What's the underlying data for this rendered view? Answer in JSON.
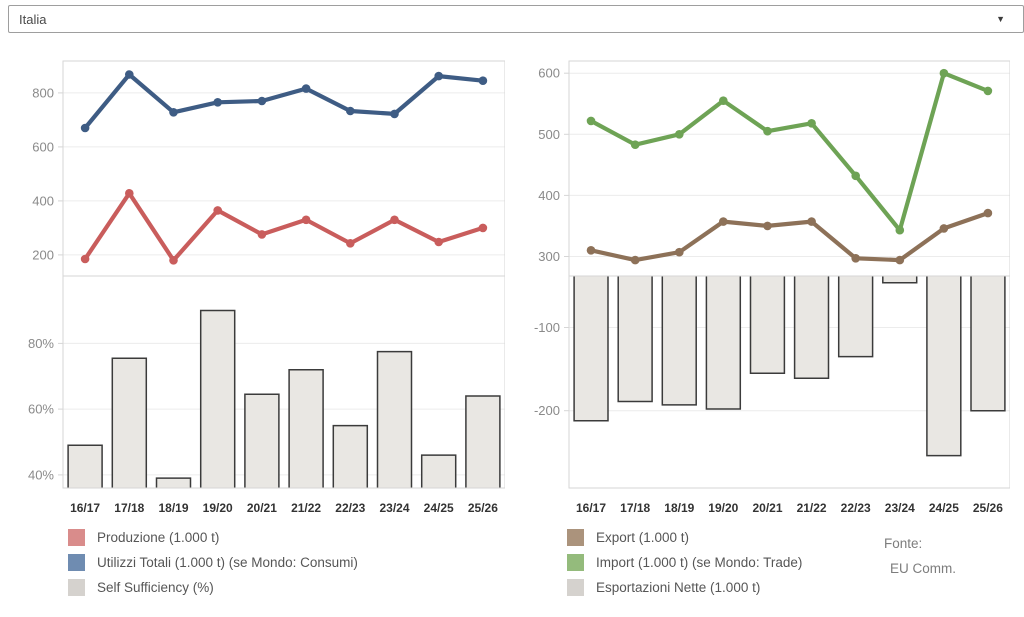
{
  "filter_dropdown": {
    "value": "Italia"
  },
  "source_note": {
    "label": "Fonte:",
    "value": "EU Comm."
  },
  "colors": {
    "blue_line": "#3e5c84",
    "red_line": "#c95d5c",
    "green_line": "#6ea355",
    "brown_line": "#8d7158",
    "bar_fill": "#e9e7e3",
    "bar_stroke": "#3b3b3b",
    "gridline": "#ececec",
    "pane_border": "#d6d6d6",
    "axis_text": "#8a8a8a",
    "x_label_text": "#333333"
  },
  "chart_data": [
    {
      "id": "left-top",
      "type": "line",
      "categories": [
        "16/17",
        "17/18",
        "18/19",
        "19/20",
        "20/21",
        "21/22",
        "22/23",
        "23/24",
        "24/25",
        "25/26"
      ],
      "ylim": [
        122,
        918
      ],
      "yticks": [
        200,
        400,
        600,
        800
      ],
      "tick_suffix": "",
      "grid": true,
      "series": [
        {
          "name": "Utilizzi Totali (1.000 t) (se Mondo: Consumi)",
          "color": "#3e5c84",
          "values": [
            670,
            868,
            728,
            765,
            770,
            816,
            733,
            722,
            862,
            845
          ]
        },
        {
          "name": "Produzione (1.000 t)",
          "color": "#c95d5c",
          "values": [
            185,
            428,
            180,
            365,
            276,
            330,
            243,
            330,
            248,
            300
          ]
        }
      ]
    },
    {
      "id": "left-bottom",
      "type": "bar",
      "name": "Self Sufficiency (%)",
      "categories": [
        "16/17",
        "17/18",
        "18/19",
        "19/20",
        "20/21",
        "21/22",
        "22/23",
        "23/24",
        "24/25",
        "25/26"
      ],
      "ylim": [
        36,
        100.5
      ],
      "yticks": [
        40,
        60,
        80
      ],
      "tick_suffix": "%",
      "baseline": "bottom",
      "values": [
        49,
        75.5,
        39,
        90,
        64.5,
        72,
        55,
        77.5,
        46,
        64
      ]
    },
    {
      "id": "right-top",
      "type": "line",
      "categories": [
        "16/17",
        "17/18",
        "18/19",
        "19/20",
        "20/21",
        "21/22",
        "22/23",
        "23/24",
        "24/25",
        "25/26"
      ],
      "ylim": [
        268,
        620
      ],
      "yticks": [
        300,
        400,
        500,
        600
      ],
      "tick_suffix": "",
      "grid": true,
      "series": [
        {
          "name": "Import (1.000 t) (se Mondo: Trade)",
          "color": "#6ea355",
          "values": [
            522,
            483,
            500,
            555,
            505,
            518,
            432,
            343,
            600,
            571
          ]
        },
        {
          "name": "Export (1.000 t)",
          "color": "#8d7158",
          "values": [
            310,
            294,
            307,
            357,
            350,
            357,
            297,
            294,
            346,
            371
          ]
        }
      ]
    },
    {
      "id": "right-bottom",
      "type": "bar",
      "name": "Esportazioni Nette (1.000 t)",
      "categories": [
        "16/17",
        "17/18",
        "18/19",
        "19/20",
        "20/21",
        "21/22",
        "22/23",
        "23/24",
        "24/25",
        "25/26"
      ],
      "ylim": [
        -293,
        -38
      ],
      "yticks": [
        -100,
        -200
      ],
      "tick_suffix": "",
      "baseline": "top",
      "values": [
        -212,
        -189,
        -193,
        -198,
        -155,
        -161,
        -135,
        -46,
        -254,
        -200
      ]
    }
  ],
  "legends": {
    "left": [
      {
        "label": "Produzione (1.000 t)",
        "color": "#d98c8b"
      },
      {
        "label": "Utilizzi Totali (1.000 t) (se Mondo: Consumi)",
        "color": "#6f8cb1"
      },
      {
        "label": "Self Sufficiency (%)",
        "color": "#d5d2ce"
      }
    ],
    "right": [
      {
        "label": "Export (1.000 t)",
        "color": "#ab937c"
      },
      {
        "label": "Import (1.000 t) (se Mondo: Trade)",
        "color": "#94bb7c"
      },
      {
        "label": "Esportazioni Nette (1.000 t)",
        "color": "#d5d2ce"
      }
    ]
  }
}
